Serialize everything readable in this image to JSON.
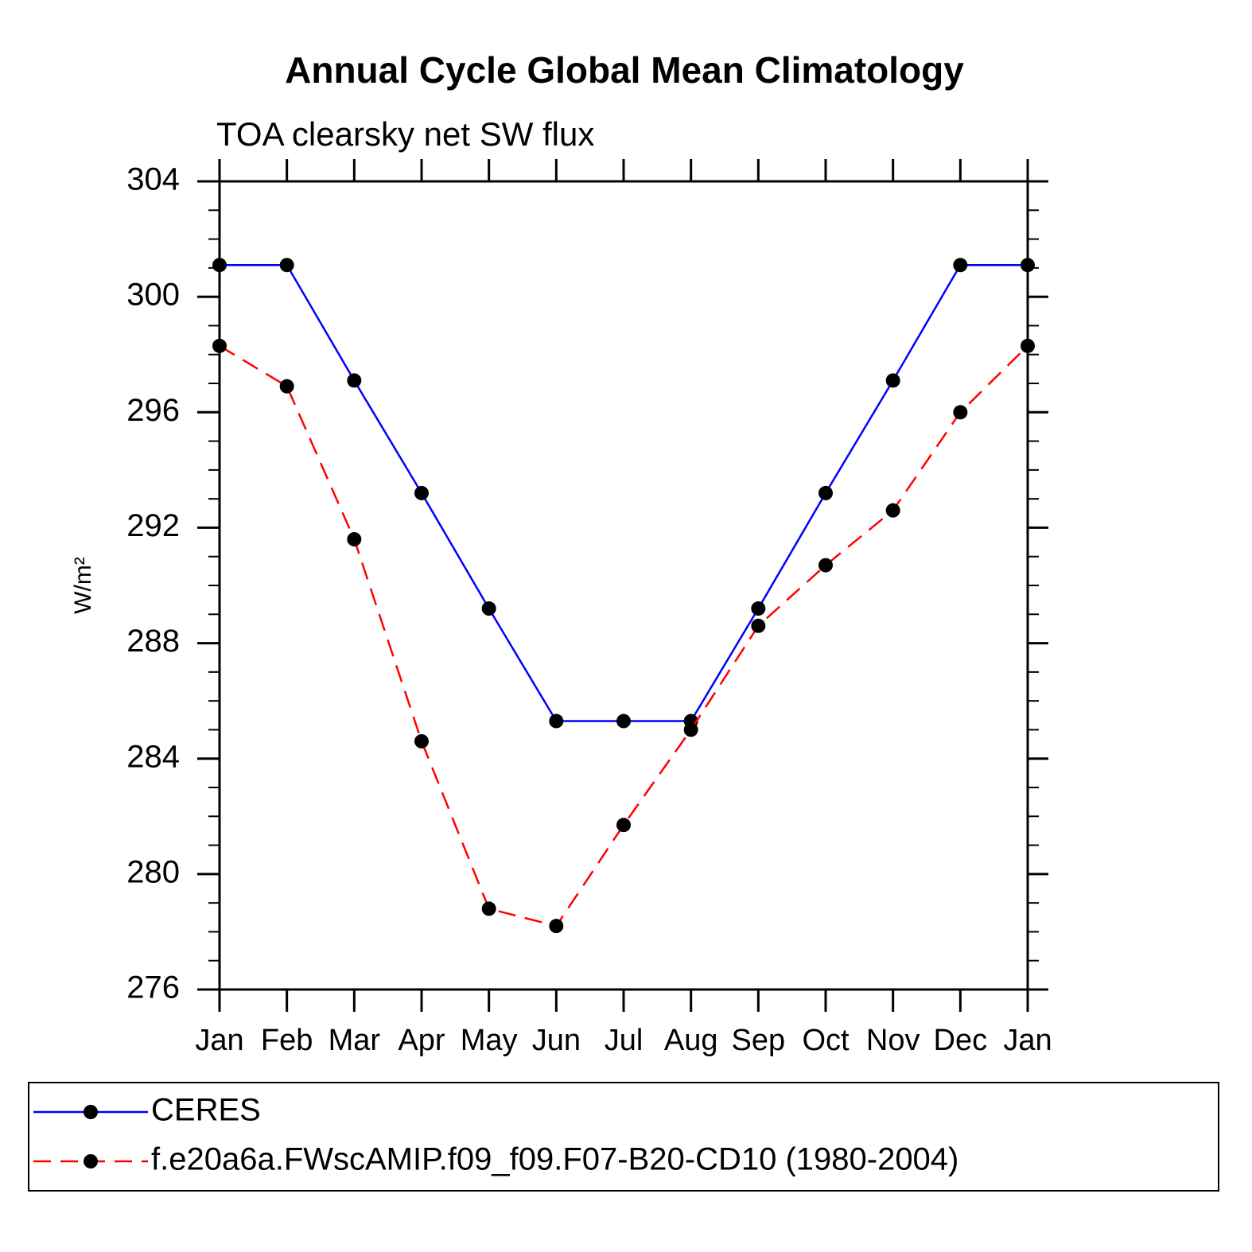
{
  "chart_data": {
    "type": "line",
    "title": "Annual Cycle Global Mean Climatology",
    "subtitle": "TOA clearsky net SW flux",
    "y_label": "W/m²",
    "categories": [
      "Jan",
      "Feb",
      "Mar",
      "Apr",
      "May",
      "Jun",
      "Jul",
      "Aug",
      "Sep",
      "Oct",
      "Nov",
      "Dec",
      "Jan"
    ],
    "series": [
      {
        "name": "CERES",
        "color": "#0000ff",
        "dash": false,
        "marker_color": "#000000",
        "values": [
          301.1,
          301.1,
          297.1,
          293.2,
          289.2,
          285.3,
          285.3,
          285.3,
          289.2,
          293.2,
          297.1,
          301.1,
          301.1
        ]
      },
      {
        "name": "f.e20a6a.FWscAMIP.f09_f09.F07-B20-CD10 (1980-2004)",
        "color": "#ff0000",
        "dash": true,
        "marker_color": "#000000",
        "values": [
          298.3,
          296.9,
          291.6,
          284.6,
          278.8,
          278.2,
          281.7,
          285.0,
          288.6,
          290.7,
          292.6,
          296.0,
          298.3
        ]
      }
    ],
    "ylim": [
      276,
      304
    ],
    "yticks": [
      276,
      280,
      284,
      288,
      292,
      296,
      300,
      304
    ],
    "yminorticks": [
      277,
      278,
      279,
      281,
      282,
      283,
      285,
      286,
      287,
      289,
      290,
      291,
      293,
      294,
      295,
      297,
      298,
      299,
      301,
      302,
      303
    ],
    "grid": false,
    "legend_position": "bottom"
  }
}
